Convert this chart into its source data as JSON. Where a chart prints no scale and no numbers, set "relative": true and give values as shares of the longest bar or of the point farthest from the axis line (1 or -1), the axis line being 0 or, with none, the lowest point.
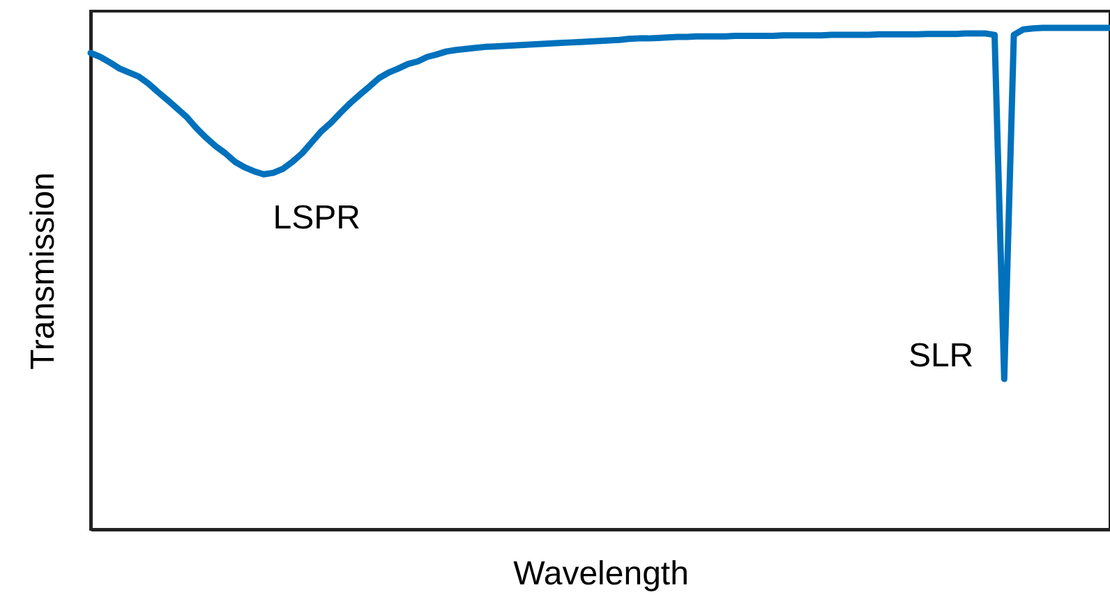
{
  "chart_data": {
    "type": "line",
    "relative": true,
    "xlabel": "Wavelength",
    "ylabel": "Transmission",
    "grid": false,
    "annotations": [
      "LSPR",
      "SLR"
    ],
    "categories": [
      null,
      null,
      null,
      null,
      null,
      null,
      null,
      null,
      null,
      null,
      null,
      null,
      null,
      null,
      null,
      null,
      null,
      null,
      null,
      null,
      null,
      null,
      null,
      null,
      null,
      null,
      null,
      null,
      null,
      null,
      null,
      null,
      null,
      null,
      null,
      null,
      null,
      null,
      null,
      null,
      null,
      null,
      null,
      null,
      null,
      null,
      null,
      null,
      null,
      null,
      null,
      null,
      null,
      null,
      null,
      null,
      null,
      null,
      null,
      null,
      null,
      null,
      null,
      null,
      null,
      null,
      null,
      null,
      null,
      null,
      null,
      null,
      null,
      null,
      null,
      null,
      null,
      null,
      null,
      null,
      null,
      null,
      null,
      null,
      null,
      null,
      null,
      null,
      null,
      null,
      null,
      null,
      null,
      null,
      null,
      null,
      null,
      null,
      null,
      null,
      null,
      null,
      null,
      null,
      null,
      null,
      null
    ],
    "series": [
      {
        "color": "#0071bc",
        "values": [
          0.95,
          0.942,
          0.931,
          0.919,
          0.911,
          0.903,
          0.889,
          0.872,
          0.856,
          0.839,
          0.822,
          0.8,
          0.781,
          0.764,
          0.75,
          0.733,
          0.722,
          0.714,
          0.708,
          0.711,
          0.719,
          0.733,
          0.75,
          0.772,
          0.794,
          0.811,
          0.831,
          0.85,
          0.867,
          0.883,
          0.9,
          0.911,
          0.919,
          0.928,
          0.933,
          0.942,
          0.947,
          0.953,
          0.956,
          0.958,
          0.96,
          0.962,
          0.963,
          0.964,
          0.965,
          0.966,
          0.967,
          0.968,
          0.969,
          0.97,
          0.971,
          0.972,
          0.973,
          0.974,
          0.975,
          0.976,
          0.978,
          0.979,
          0.979,
          0.98,
          0.981,
          0.982,
          0.982,
          0.983,
          0.983,
          0.983,
          0.983,
          0.984,
          0.984,
          0.984,
          0.984,
          0.984,
          0.985,
          0.985,
          0.985,
          0.985,
          0.985,
          0.986,
          0.986,
          0.986,
          0.986,
          0.986,
          0.987,
          0.987,
          0.987,
          0.987,
          0.987,
          0.988,
          0.988,
          0.988,
          0.988,
          0.989,
          0.989,
          0.989,
          0.986,
          0.3,
          0.986,
          0.997,
          0.999,
          1,
          1,
          1,
          1,
          1,
          1,
          1,
          1
        ]
      }
    ]
  }
}
